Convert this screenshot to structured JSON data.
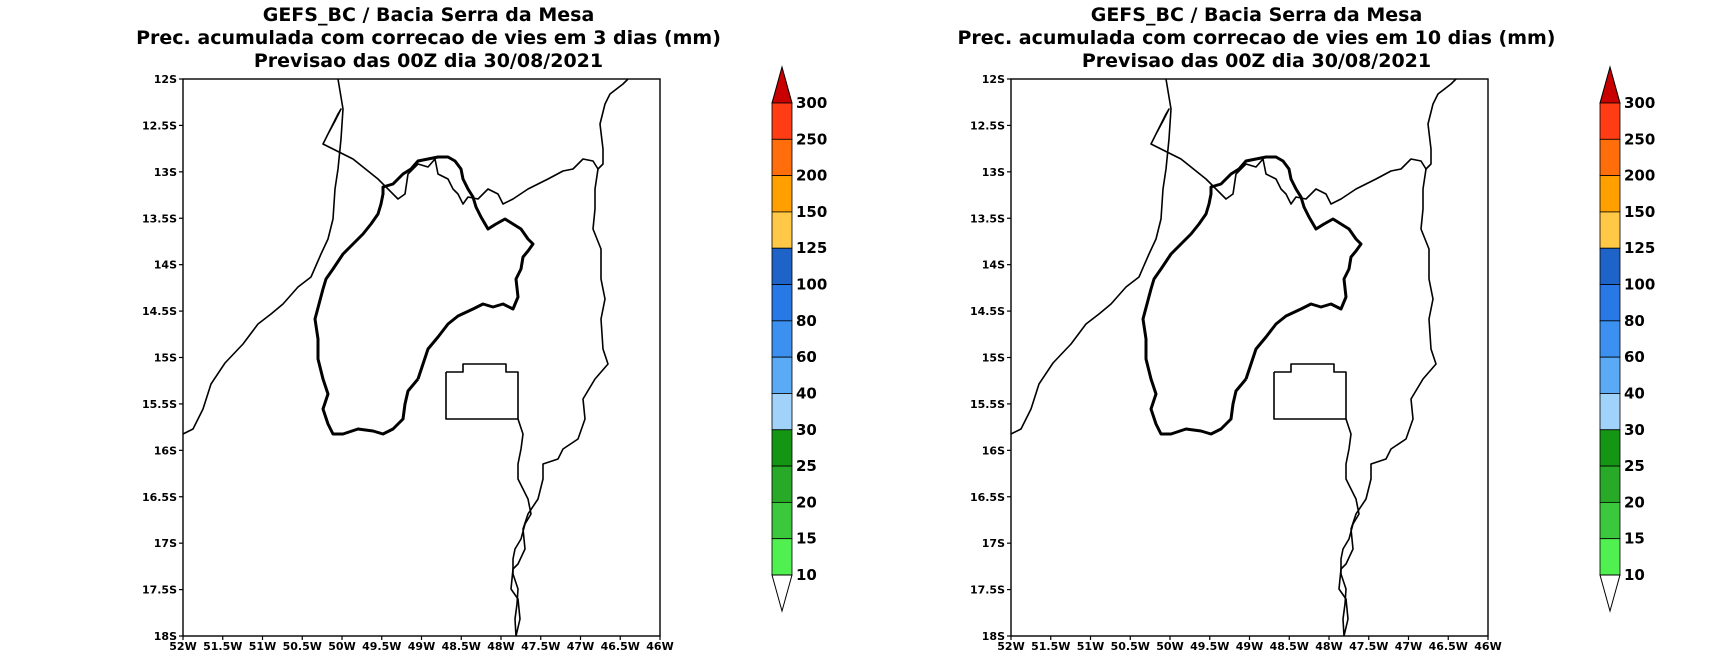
{
  "maps": [
    {
      "title_line1": "GEFS_BC / Bacia Serra da Mesa",
      "title_line2": "Prec. acumulada com correcao de vies em 3 dias (mm)",
      "title_line3": "Previsao das 00Z dia 30/08/2021"
    },
    {
      "title_line1": "GEFS_BC / Bacia Serra da Mesa",
      "title_line2": "Prec. acumulada com correcao de vies em 10 dias (mm)",
      "title_line3": "Previsao das 00Z dia 30/08/2021"
    }
  ],
  "lat_labels": [
    "12S",
    "12.5S",
    "13S",
    "13.5S",
    "14S",
    "14.5S",
    "15S",
    "15.5S",
    "16S",
    "16.5S",
    "17S",
    "17.5S",
    "18S"
  ],
  "lon_labels": [
    "52W",
    "51.5W",
    "51W",
    "50.5W",
    "50W",
    "49.5W",
    "49W",
    "48.5W",
    "48W",
    "47.5W",
    "47W",
    "46.5W",
    "46W"
  ],
  "colorbar": {
    "labels": [
      "300",
      "250",
      "200",
      "150",
      "125",
      "100",
      "80",
      "60",
      "40",
      "30",
      "25",
      "20",
      "15",
      "10"
    ],
    "colors_top_to_bottom": [
      "#c80000",
      "#ff3c14",
      "#ff6e0a",
      "#ffa000",
      "#ffc846",
      "#1e64c8",
      "#2878e6",
      "#3c91f0",
      "#5aaaf5",
      "#a0d2fa",
      "#149614",
      "#28aa28",
      "#3cc83c",
      "#50f050",
      "#ffffff"
    ]
  }
}
